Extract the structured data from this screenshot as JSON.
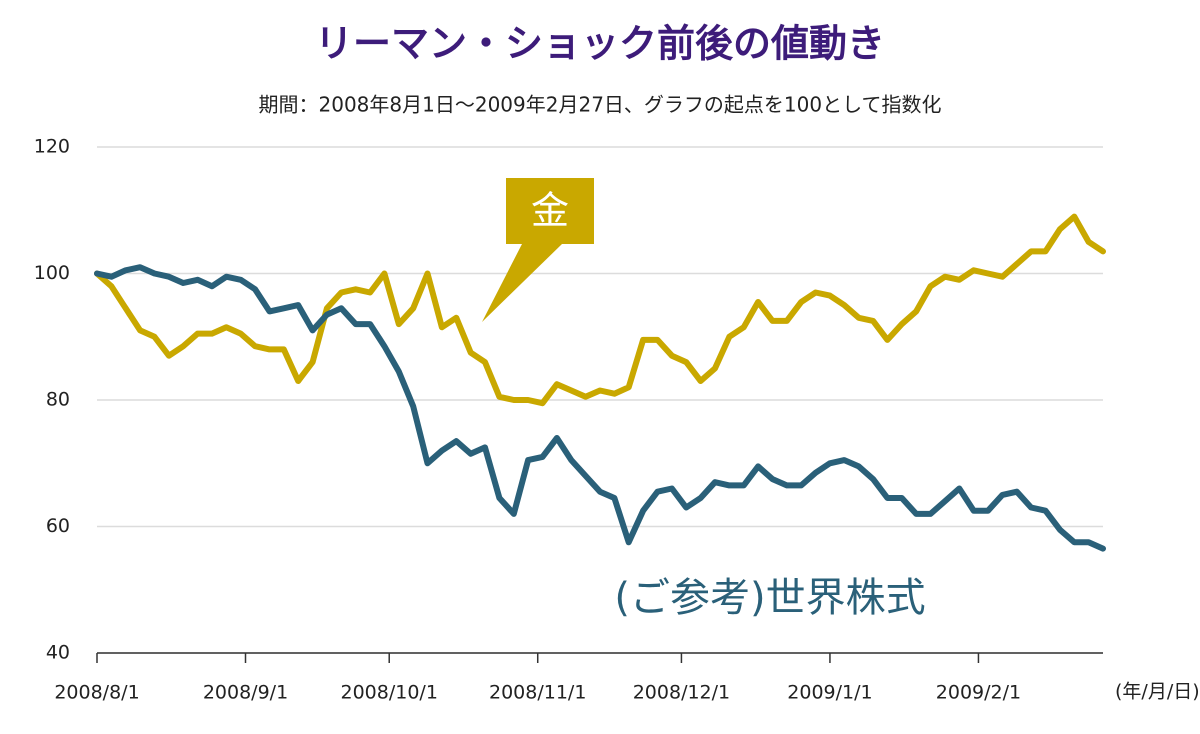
{
  "chart_data": {
    "type": "line",
    "title": "リーマン・ショック前後の値動き",
    "subtitle": "期間：2008年8月1日～2009年2月27日、グラフの起点を100として指数化",
    "xlabel": "(年/月/日)",
    "x": [
      "2008/8/1",
      "2008/8/4",
      "2008/8/7",
      "2008/8/10",
      "2008/8/13",
      "2008/8/16",
      "2008/8/19",
      "2008/8/22",
      "2008/8/25",
      "2008/8/28",
      "2008/8/31",
      "2008/9/3",
      "2008/9/6",
      "2008/9/9",
      "2008/9/12",
      "2008/9/15",
      "2008/9/18",
      "2008/9/21",
      "2008/9/24",
      "2008/9/27",
      "2008/9/30",
      "2008/10/3",
      "2008/10/6",
      "2008/10/9",
      "2008/10/12",
      "2008/10/15",
      "2008/10/18",
      "2008/10/21",
      "2008/10/24",
      "2008/10/27",
      "2008/10/30",
      "2008/11/2",
      "2008/11/5",
      "2008/11/8",
      "2008/11/11",
      "2008/11/14",
      "2008/11/17",
      "2008/11/20",
      "2008/11/23",
      "2008/11/26",
      "2008/11/29",
      "2008/12/2",
      "2008/12/5",
      "2008/12/8",
      "2008/12/11",
      "2008/12/14",
      "2008/12/17",
      "2008/12/20",
      "2008/12/23",
      "2008/12/26",
      "2008/12/29",
      "2009/1/1",
      "2009/1/4",
      "2009/1/7",
      "2009/1/10",
      "2009/1/13",
      "2009/1/16",
      "2009/1/19",
      "2009/1/22",
      "2009/1/25",
      "2009/1/28",
      "2009/1/31",
      "2009/2/3",
      "2009/2/6",
      "2009/2/9",
      "2009/2/12",
      "2009/2/15",
      "2009/2/18",
      "2009/2/21",
      "2009/2/24",
      "2009/2/27"
    ],
    "series": [
      {
        "name": "金",
        "color": "#c9a800",
        "values": [
          100,
          98,
          94.5,
          91,
          90,
          87,
          88.5,
          90.5,
          90.5,
          91.5,
          90.5,
          88.5,
          88,
          88,
          83,
          86,
          94.5,
          97,
          97.5,
          97,
          100,
          92,
          94.5,
          100,
          91.5,
          93,
          87.5,
          86,
          80.5,
          80,
          80,
          79.5,
          82.5,
          81.5,
          80.5,
          81.5,
          81,
          82,
          89.5,
          89.5,
          87,
          86,
          83,
          85,
          90,
          91.5,
          95.5,
          92.5,
          92.5,
          95.5,
          97,
          96.5,
          95,
          93,
          92.5,
          89.5,
          92,
          94,
          98,
          99.5,
          99,
          100.5,
          100,
          99.5,
          101.5,
          103.5,
          103.5,
          107,
          109,
          105,
          103.5
        ]
      },
      {
        "name": "(ご参考)世界株式",
        "color": "#2a6079",
        "values": [
          100,
          99.5,
          100.5,
          101,
          100,
          99.5,
          98.5,
          99,
          98,
          99.5,
          99,
          97.5,
          94,
          94.5,
          95,
          91,
          93.5,
          94.5,
          92,
          92,
          88.5,
          84.5,
          79,
          70,
          72,
          73.5,
          71.5,
          72.5,
          64.5,
          62,
          70.5,
          71,
          74,
          70.5,
          68,
          65.5,
          64.5,
          57.5,
          62.5,
          65.5,
          66,
          63,
          64.5,
          67,
          66.5,
          66.5,
          69.5,
          67.5,
          66.5,
          66.5,
          68.5,
          70,
          70.5,
          69.5,
          67.5,
          64.5,
          64.5,
          62,
          62,
          64,
          66,
          62.5,
          62.5,
          65,
          65.5,
          63,
          62.5,
          59.5,
          57.5,
          57.5,
          56.5
        ]
      }
    ],
    "xlim": [
      "2008/8/1",
      "2009/2/27"
    ],
    "xticks": [
      "2008/8/1",
      "2008/9/1",
      "2008/10/1",
      "2008/11/1",
      "2008/12/1",
      "2009/1/1",
      "2009/2/1"
    ],
    "ylim": [
      40,
      120
    ],
    "yticks": [
      40,
      60,
      80,
      100,
      120
    ],
    "grid": true
  }
}
